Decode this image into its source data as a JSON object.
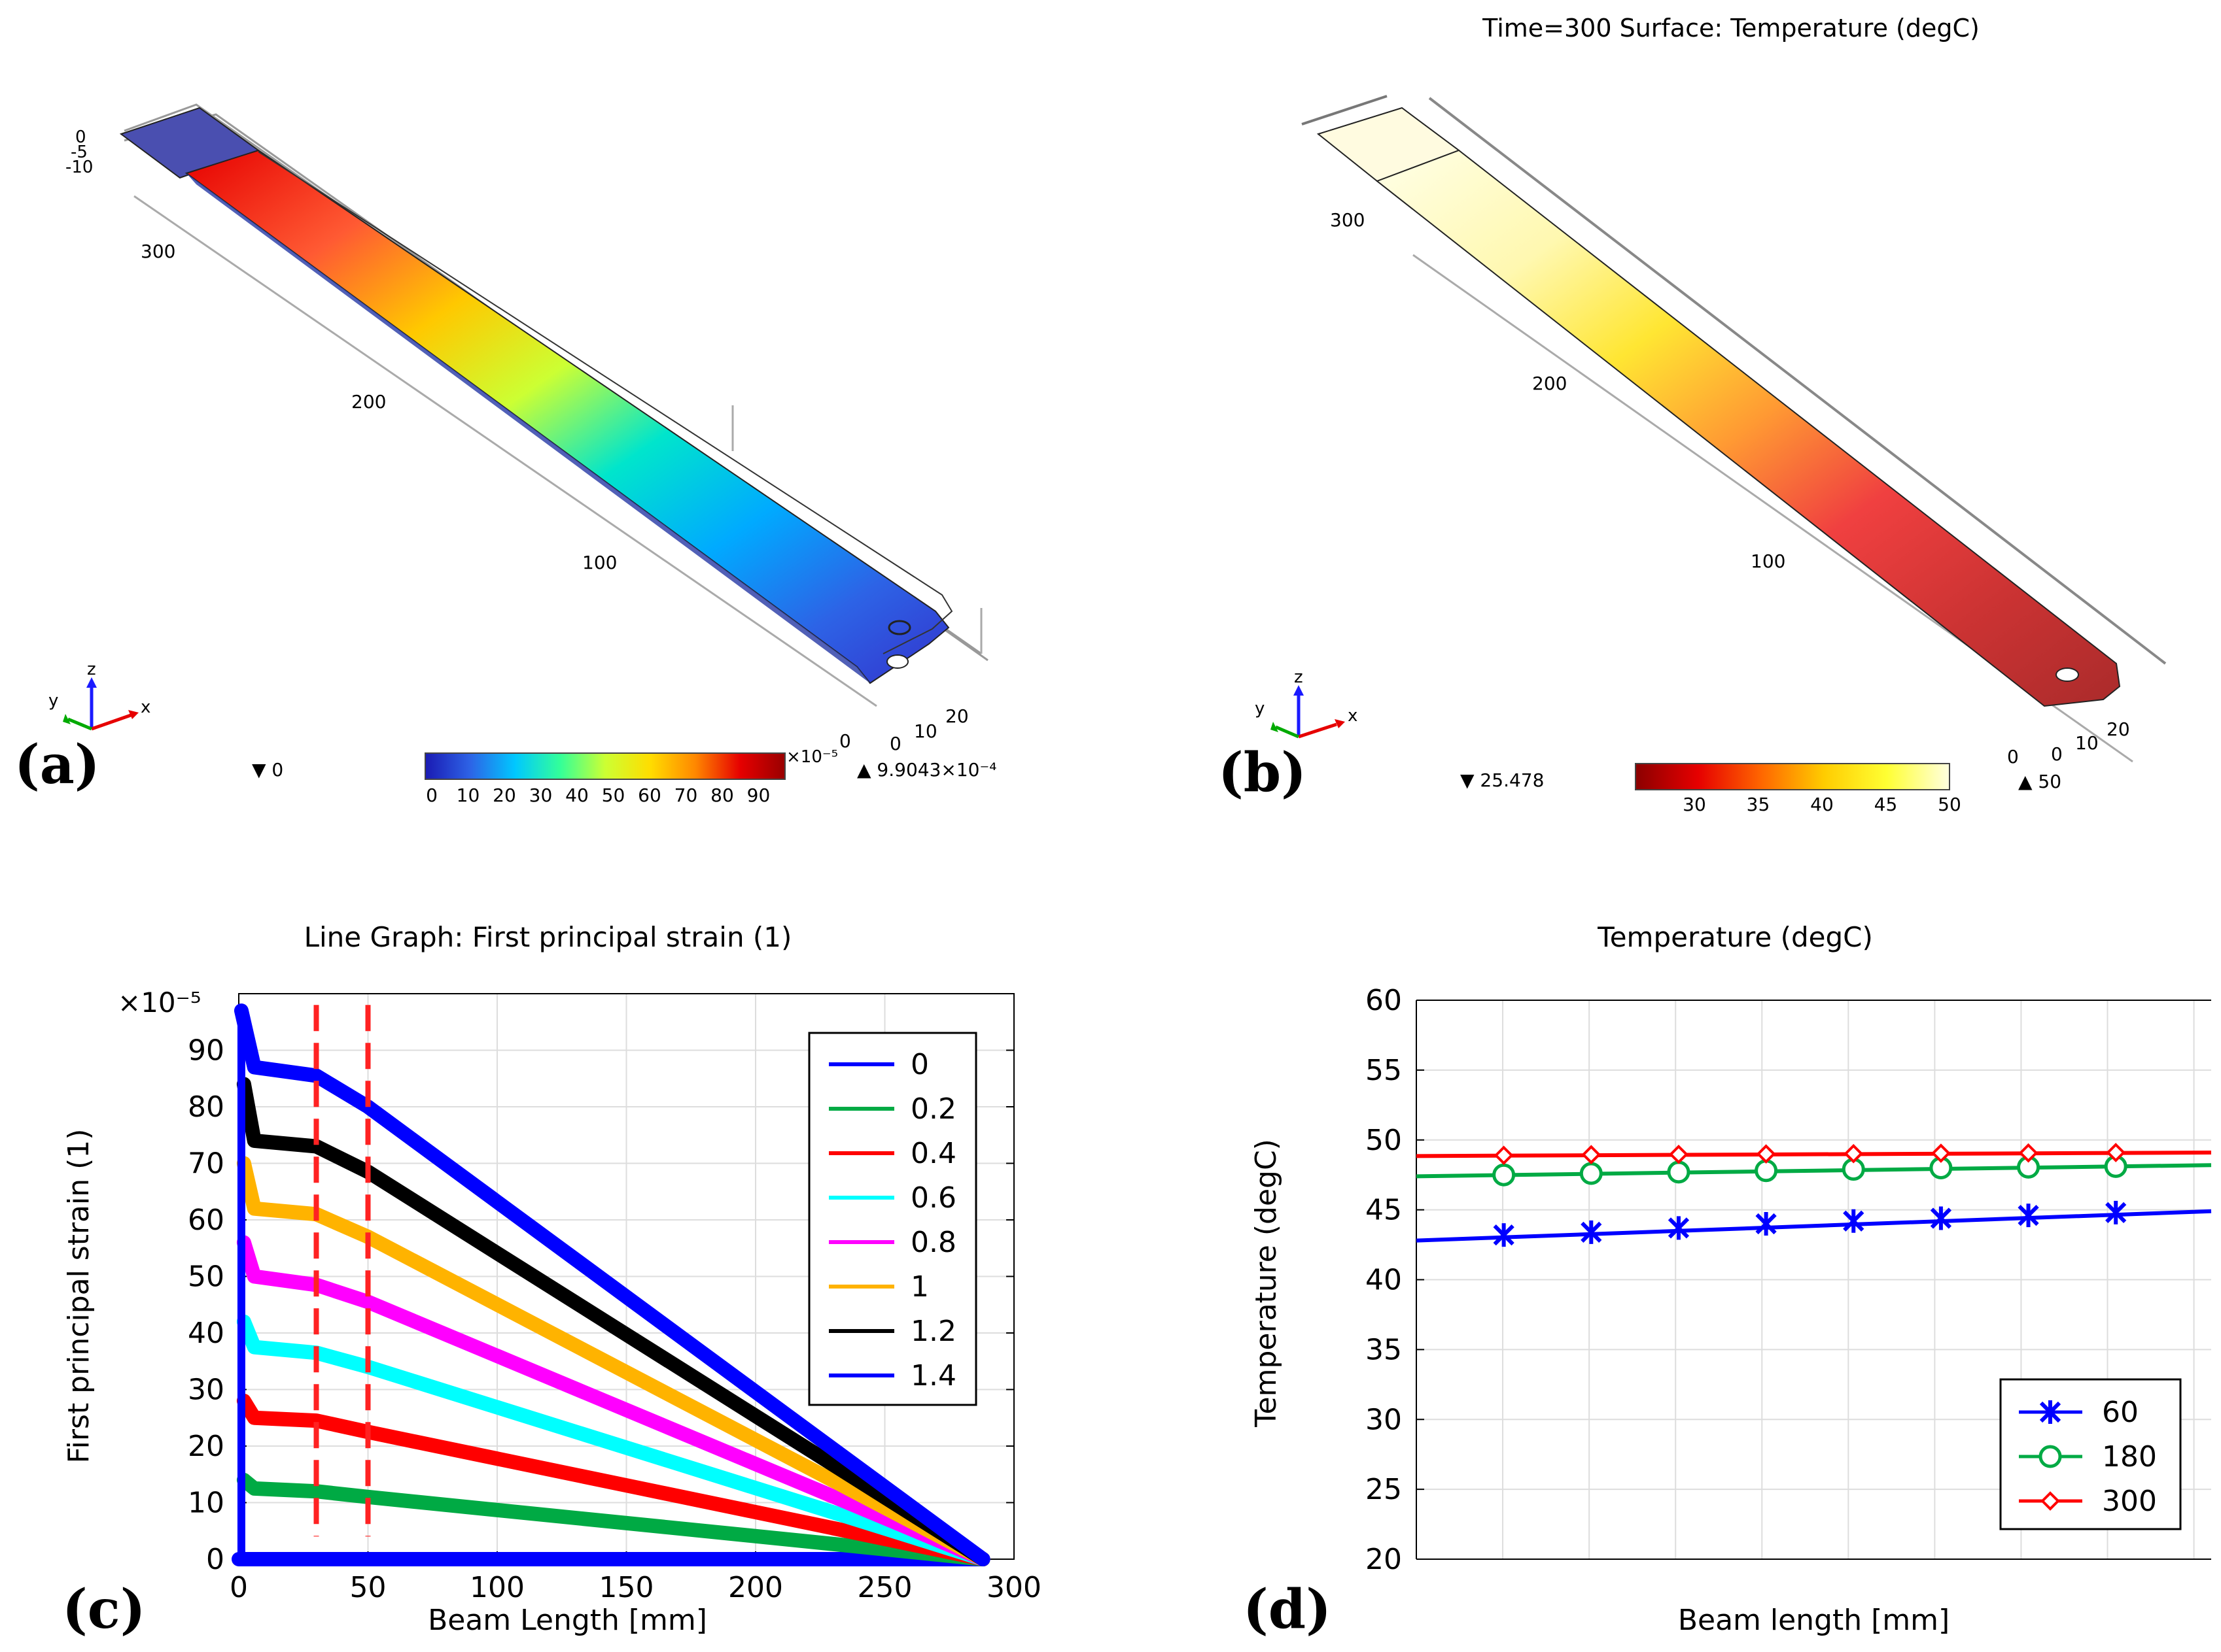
{
  "panels": {
    "a": {
      "label": "(a)",
      "axis_ticks": [
        "0",
        "-5",
        "-10",
        "300",
        "200",
        "100",
        "0",
        "10",
        "20"
      ],
      "triad": {
        "x": "x",
        "y": "y",
        "z": "z"
      },
      "min_marker": "▼ 0",
      "max_marker": "▲ 9.9043×10⁻⁴",
      "colorbar": {
        "ticks": [
          "0",
          "10",
          "20",
          "30",
          "40",
          "50",
          "60",
          "70",
          "80",
          "90"
        ],
        "exponent": "×10⁻⁵",
        "colors": [
          "#1a1ab3",
          "#2d63e6",
          "#00c8ff",
          "#33ff99",
          "#ccff33",
          "#ffdd00",
          "#ff8800",
          "#e60000",
          "#990000"
        ]
      }
    },
    "b": {
      "label": "(b)",
      "title": "Time=300  Surface: Temperature (degC)",
      "axis_ticks": [
        "300",
        "200",
        "100",
        "0",
        "0",
        "10",
        "20"
      ],
      "triad": {
        "x": "x",
        "y": "y",
        "z": "z"
      },
      "min_marker": "▼ 25.478",
      "max_marker": "▲ 50",
      "colorbar": {
        "ticks": [
          "30",
          "35",
          "40",
          "45",
          "50"
        ],
        "colors": [
          "#8b0000",
          "#e60000",
          "#ff6600",
          "#ffcc00",
          "#ffff33",
          "#ffffe0"
        ]
      }
    },
    "c": {
      "label": "(c)"
    },
    "d": {
      "label": "(d)"
    }
  },
  "chart_data": [
    {
      "id": "c",
      "type": "line",
      "title": "Line Graph: First principal strain (1)",
      "xlabel": "Beam Length [mm]",
      "ylabel": "First principal strain (1)",
      "y_exponent": "×10⁻⁵",
      "xlim": [
        0,
        300
      ],
      "ylim": [
        0,
        100
      ],
      "xticks": [
        "0",
        "50",
        "100",
        "150",
        "200",
        "250",
        "300"
      ],
      "yticks": [
        "0",
        "10",
        "20",
        "30",
        "40",
        "50",
        "60",
        "70",
        "80",
        "90"
      ],
      "grid": true,
      "legend_position": "top-right",
      "vlines": [
        30,
        50
      ],
      "series": [
        {
          "name": "0",
          "color": "#0000ff",
          "points": [
            [
              0,
              0
            ],
            [
              288,
              0
            ]
          ]
        },
        {
          "name": "0.2",
          "color": "#00aa44",
          "points": [
            [
              2,
              14
            ],
            [
              6,
              12.5
            ],
            [
              30,
              12
            ],
            [
              50,
              11
            ],
            [
              288,
              0
            ]
          ]
        },
        {
          "name": "0.4",
          "color": "#ff0000",
          "points": [
            [
              2,
              28
            ],
            [
              6,
              25
            ],
            [
              30,
              24.5
            ],
            [
              50,
              22.5
            ],
            [
              288,
              0
            ]
          ]
        },
        {
          "name": "0.6",
          "color": "#00ffff",
          "points": [
            [
              2,
              42
            ],
            [
              6,
              37.5
            ],
            [
              30,
              36.5
            ],
            [
              50,
              34
            ],
            [
              288,
              0
            ]
          ]
        },
        {
          "name": "0.8",
          "color": "#ff00ff",
          "points": [
            [
              2,
              56
            ],
            [
              6,
              50
            ],
            [
              30,
              48.5
            ],
            [
              50,
              45.5
            ],
            [
              288,
              0
            ]
          ]
        },
        {
          "name": "1",
          "color": "#ffb300",
          "points": [
            [
              2,
              70
            ],
            [
              6,
              62
            ],
            [
              30,
              61
            ],
            [
              50,
              57
            ],
            [
              288,
              0
            ]
          ]
        },
        {
          "name": "1.2",
          "color": "#000000",
          "points": [
            [
              2,
              84
            ],
            [
              6,
              74
            ],
            [
              30,
              73
            ],
            [
              50,
              68.5
            ],
            [
              288,
              0
            ]
          ]
        },
        {
          "name": "1.4",
          "color": "#0000ff",
          "points": [
            [
              1,
              97
            ],
            [
              6,
              87
            ],
            [
              30,
              85.5
            ],
            [
              50,
              80
            ],
            [
              288,
              0
            ]
          ]
        }
      ]
    },
    {
      "id": "d",
      "type": "line",
      "title": "Temperature (degC)",
      "xlabel": "Beam length [mm]",
      "ylabel": "Temperature (degC)",
      "xlim": [
        0,
        1
      ],
      "ylim": [
        20,
        60
      ],
      "yticks": [
        "20",
        "25",
        "30",
        "35",
        "40",
        "45",
        "50",
        "55",
        "60"
      ],
      "grid": true,
      "legend_position": "bottom-right",
      "series": [
        {
          "name": "60",
          "color": "#0000ff",
          "marker": "star",
          "line": [
            [
              0,
              42.8
            ],
            [
              1,
              44.9
            ]
          ],
          "markers": [
            [
              0.11,
              43.2
            ],
            [
              0.22,
              43.4
            ],
            [
              0.33,
              43.7
            ],
            [
              0.44,
              44.0
            ],
            [
              0.55,
              44.2
            ],
            [
              0.66,
              44.4
            ],
            [
              0.77,
              44.6
            ],
            [
              0.88,
              44.8
            ]
          ]
        },
        {
          "name": "180",
          "color": "#00aa44",
          "marker": "circle",
          "line": [
            [
              0,
              47.4
            ],
            [
              1,
              48.2
            ]
          ],
          "markers": [
            [
              0.11,
              47.5
            ],
            [
              0.22,
              47.6
            ],
            [
              0.33,
              47.7
            ],
            [
              0.44,
              47.8
            ],
            [
              0.55,
              47.9
            ],
            [
              0.66,
              48.0
            ],
            [
              0.77,
              48.05
            ],
            [
              0.88,
              48.1
            ]
          ]
        },
        {
          "name": "300",
          "color": "#ff0000",
          "marker": "diamond",
          "line": [
            [
              0,
              48.85
            ],
            [
              1,
              49.1
            ]
          ],
          "markers": [
            [
              0.11,
              48.9
            ],
            [
              0.22,
              48.95
            ],
            [
              0.33,
              48.97
            ],
            [
              0.44,
              49.0
            ],
            [
              0.55,
              49.02
            ],
            [
              0.66,
              49.05
            ],
            [
              0.77,
              49.07
            ],
            [
              0.88,
              49.1
            ]
          ]
        }
      ]
    }
  ]
}
